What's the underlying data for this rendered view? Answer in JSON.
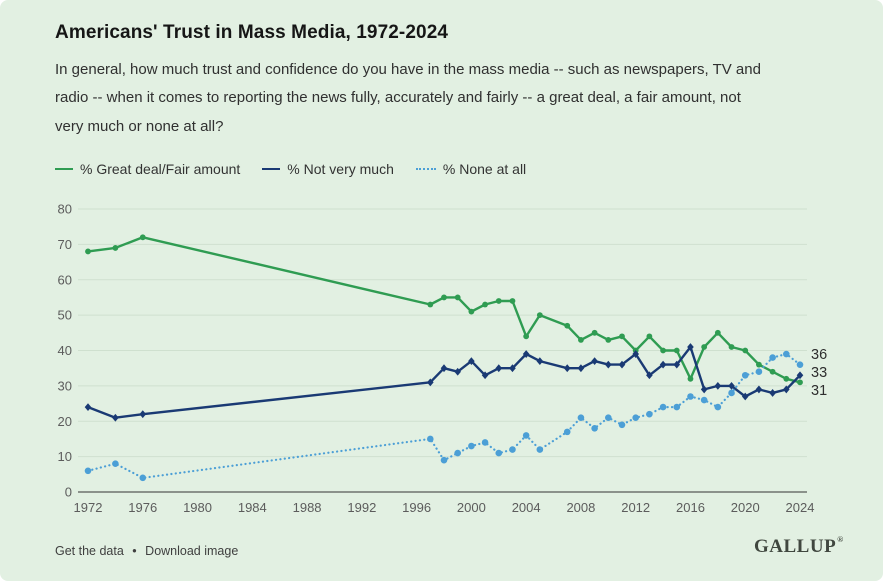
{
  "page": {
    "background": "#e2f0e2"
  },
  "header": {
    "title": "Americans' Trust in Mass Media, 1972-2024",
    "subtitle_lines": [
      "In general, how much trust and confidence do you have in the mass media -- such as newspapers, TV and",
      "radio -- when it comes to reporting the news fully, accurately and fairly -- a great deal, a fair amount, not",
      "very much or none at all?"
    ]
  },
  "legend": [
    {
      "label": "% Great deal/Fair amount",
      "color": "#2f9c52",
      "style": "solid"
    },
    {
      "label": "% Not very much",
      "color": "#1a3a74",
      "style": "solid"
    },
    {
      "label": "% None at all",
      "color": "#4c9fd6",
      "style": "dotted"
    }
  ],
  "chart_data": {
    "type": "line",
    "x": [
      1972,
      1974,
      1976,
      1997,
      1998,
      1999,
      2000,
      2001,
      2002,
      2003,
      2004,
      2005,
      2007,
      2008,
      2009,
      2010,
      2011,
      2012,
      2013,
      2014,
      2015,
      2016,
      2017,
      2018,
      2019,
      2020,
      2021,
      2022,
      2023,
      2024
    ],
    "series": [
      {
        "name": "% Great deal/Fair amount",
        "color": "#2f9c52",
        "style": "solid",
        "marker": "circle",
        "values": [
          68,
          69,
          72,
          53,
          55,
          55,
          51,
          53,
          54,
          54,
          44,
          50,
          47,
          43,
          45,
          43,
          44,
          40,
          44,
          40,
          40,
          32,
          41,
          45,
          41,
          40,
          36,
          34,
          32,
          31
        ],
        "end_label": "31"
      },
      {
        "name": "% Not very much",
        "color": "#1a3a74",
        "style": "solid",
        "marker": "diamond",
        "values": [
          24,
          21,
          22,
          31,
          35,
          34,
          37,
          33,
          35,
          35,
          39,
          37,
          35,
          35,
          37,
          36,
          36,
          39,
          33,
          36,
          36,
          41,
          29,
          30,
          30,
          27,
          29,
          28,
          29,
          33
        ],
        "end_label": "33"
      },
      {
        "name": "% None at all",
        "color": "#4c9fd6",
        "style": "dotted",
        "marker": "circle",
        "values": [
          6,
          8,
          4,
          15,
          9,
          11,
          13,
          14,
          11,
          12,
          16,
          12,
          17,
          21,
          18,
          21,
          19,
          21,
          22,
          24,
          24,
          27,
          26,
          24,
          28,
          33,
          34,
          38,
          39,
          36
        ],
        "end_label": "36"
      }
    ],
    "title": "Americans' Trust in Mass Media, 1972-2024",
    "xlabel": "",
    "ylabel": "",
    "ylim": [
      0,
      80
    ],
    "yticks": [
      0,
      10,
      20,
      30,
      40,
      50,
      60,
      70,
      80
    ],
    "xticks": [
      1972,
      1976,
      1980,
      1984,
      1988,
      1992,
      1996,
      2000,
      2004,
      2008,
      2012,
      2016,
      2020,
      2024
    ],
    "grid": true,
    "legend_position": "top",
    "colors": {
      "grid": "#cfe0cf",
      "axis": "#6e736e",
      "tick_label": "#5c5c5c",
      "end_label": "#2e2e2e"
    }
  },
  "footer": {
    "links": [
      {
        "label": "Get the data"
      },
      {
        "label": "Download image"
      }
    ],
    "separator": "•",
    "brand": "GALLUP",
    "brand_mark": "®"
  }
}
